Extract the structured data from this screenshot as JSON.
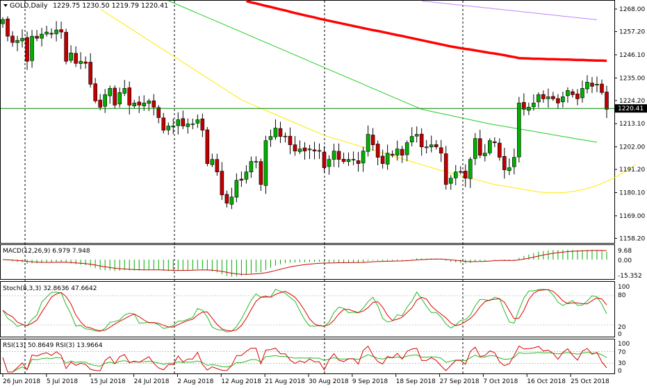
{
  "header": {
    "symbol_label": "GOLD,Daily",
    "ohlc_text": "1229.75 1230.50 1219.79 1220.41"
  },
  "current_price_label": "1220.41",
  "colors": {
    "up_candle": "#00b000",
    "down_candle": "#c00000",
    "ma_red": "#ff0000",
    "ma_purple": "#c080ff",
    "ma_green": "#22cc22",
    "ma_yellow": "#ffea00",
    "price_line": "#008000",
    "macd_hist": "#00aa00",
    "macd_signal": "#cc0000",
    "stoch_main": "#22bb22",
    "stoch_signal": "#dd0000",
    "rsi_fast": "#dd0000",
    "rsi_slow": "#22bb22"
  },
  "panels": {
    "macd": {
      "label": "MACD(12,26,9) 6.979 7.948",
      "ticks": [
        "9.68",
        "0.00",
        "-15.352"
      ]
    },
    "stoch": {
      "label": "Stoch(8,3,3) 32.8636 47.6642",
      "ticks": [
        "100",
        "80",
        "20",
        "0"
      ]
    },
    "rsi": {
      "label": "RSI(13) 50.8649 RSI(3) 13.9664",
      "ticks": [
        "100",
        "70",
        "30",
        "0"
      ]
    }
  },
  "chart_data": {
    "type": "candlestick",
    "title": "GOLD,Daily",
    "ylim": [
      1156,
      1272
    ],
    "y_ticks": [
      "1268.00",
      "1257.20",
      "1246.10",
      "1235.00",
      "1224.20",
      "1213.10",
      "1202.00",
      "1191.20",
      "1180.10",
      "1169.00",
      "1158.20"
    ],
    "x_ticks": [
      "26 Jun 2018",
      "5 Jul 2018",
      "15 Jul 2018",
      "24 Jul 2018",
      "2 Aug 2018",
      "12 Aug 2018",
      "21 Aug 2018",
      "30 Aug 2018",
      "9 Sep 2018",
      "18 Sep 2018",
      "27 Sep 2018",
      "7 Oct 2018",
      "16 Oct 2018",
      "25 Oct 2018"
    ],
    "closes": [
      1263,
      1255,
      1252,
      1253,
      1254,
      1243,
      1255,
      1254,
      1256,
      1257,
      1256,
      1258,
      1257,
      1243,
      1247,
      1242,
      1243,
      1242,
      1232,
      1224,
      1221,
      1227,
      1230,
      1222,
      1228,
      1230,
      1222,
      1223,
      1222,
      1223,
      1224,
      1221,
      1216,
      1210,
      1212,
      1212,
      1215,
      1212,
      1213,
      1213,
      1215,
      1210,
      1194,
      1196,
      1190,
      1179,
      1175,
      1178,
      1186,
      1186,
      1190,
      1195,
      1195,
      1184,
      1205,
      1207,
      1211,
      1207,
      1207,
      1203,
      1200,
      1201,
      1200,
      1201,
      1200,
      1200,
      1192,
      1196,
      1200,
      1196,
      1195,
      1196,
      1196,
      1194,
      1200,
      1208,
      1203,
      1197,
      1194,
      1199,
      1198,
      1201,
      1198,
      1204,
      1207,
      1208,
      1202,
      1202,
      1203,
      1202,
      1199,
      1184,
      1187,
      1190,
      1190,
      1187,
      1196,
      1206,
      1198,
      1199,
      1205,
      1204,
      1197,
      1191,
      1192,
      1197,
      1223,
      1220,
      1221,
      1223,
      1227,
      1225,
      1226,
      1225,
      1223,
      1226,
      1229,
      1227,
      1225,
      1230,
      1233,
      1231,
      1232,
      1228,
      1220
    ],
    "series": [
      {
        "name": "MA",
        "color": "#ff0000",
        "values": [
          null,
          null,
          null,
          null,
          null,
          null,
          null,
          null,
          null,
          null,
          null,
          null,
          null,
          null,
          null,
          null,
          null,
          null,
          null,
          null,
          null,
          null,
          null,
          null,
          null,
          null,
          null,
          null,
          null,
          null,
          null,
          null,
          null,
          null,
          null,
          null,
          null,
          null,
          null,
          null,
          null,
          null,
          null,
          null,
          null,
          null,
          null,
          null,
          null,
          null,
          1271.8,
          1271.2,
          1270.7,
          1270.1,
          1269.5,
          1269.0,
          1268.4,
          1267.8,
          1267.3,
          1266.7,
          1266.1,
          1265.6,
          1265.0,
          1264.5,
          1264.0,
          1263.4,
          1262.9,
          1262.4,
          1261.9,
          1261.4,
          1260.9,
          1260.4,
          1259.9,
          1259.4,
          1258.9,
          1258.4,
          1257.9,
          1257.5,
          1257.0,
          1256.5,
          1256.0,
          1255.5,
          1255.1,
          1254.6,
          1254.1,
          1253.6,
          1253.1,
          1252.6,
          1252.1,
          1251.6,
          1251.1,
          1250.6,
          1250.1,
          1249.7,
          1249.3,
          1248.9,
          1248.6,
          1248.2,
          1247.8,
          1247.4,
          1247.0,
          1246.7,
          1246.3,
          1245.9,
          1245.4,
          1245.0,
          1244.5,
          1244.4,
          1244.3,
          1244.2,
          1244.2,
          1244.1,
          1244.0,
          1244.0,
          1243.9,
          1243.8,
          1243.8,
          1243.7,
          1243.6,
          1243.6,
          1243.5,
          1243.4,
          1243.3,
          1243.3,
          1243.2
        ]
      },
      {
        "name": "MA",
        "color": "#c080ff",
        "values": [
          null,
          null,
          null,
          null,
          null,
          null,
          null,
          null,
          null,
          null,
          null,
          null,
          null,
          null,
          null,
          null,
          null,
          null,
          null,
          null,
          null,
          null,
          null,
          null,
          null,
          null,
          null,
          null,
          null,
          null,
          null,
          null,
          null,
          null,
          null,
          null,
          null,
          null,
          null,
          null,
          null,
          null,
          null,
          null,
          null,
          null,
          null,
          null,
          null,
          null,
          null,
          null,
          null,
          null,
          null,
          null,
          null,
          null,
          null,
          null,
          null,
          null,
          null,
          null,
          null,
          null,
          null,
          null,
          null,
          null,
          null,
          null,
          null,
          null,
          null,
          null,
          null,
          null,
          null,
          null,
          null,
          null,
          null,
          null,
          null,
          null,
          1271.9,
          1271.6,
          1271.4,
          1271.1,
          1270.9,
          1270.6,
          1270.4,
          1270.1,
          1269.9,
          1269.6,
          1269.4,
          1269.1,
          1268.9,
          1268.6,
          1268.4,
          1268.1,
          1267.9,
          1267.6,
          1267.4,
          1267.1,
          1266.9,
          1266.6,
          1266.4,
          1266.1,
          1265.9,
          1265.6,
          1265.4,
          1265.1,
          1264.9,
          1264.6,
          1264.4,
          1264.1,
          1263.9,
          1263.6,
          1263.4,
          1263.1,
          1262.9
        ]
      },
      {
        "name": "MA",
        "color": "#22cc22",
        "values": [
          null,
          null,
          null,
          null,
          null,
          null,
          null,
          null,
          null,
          null,
          null,
          null,
          null,
          null,
          null,
          null,
          null,
          null,
          null,
          null,
          null,
          null,
          null,
          null,
          null,
          null,
          null,
          null,
          null,
          null,
          null,
          null,
          null,
          null,
          1272.0,
          1271.0,
          1270.0,
          1269.0,
          1268.0,
          1267.0,
          1266.0,
          1265.0,
          1264.0,
          1263.0,
          1262.0,
          1261.0,
          1260.0,
          1259.0,
          1258.0,
          1257.0,
          1256.0,
          1255.0,
          1254.0,
          1253.0,
          1252.0,
          1251.0,
          1250.0,
          1249.0,
          1248.0,
          1247.0,
          1246.0,
          1245.0,
          1244.0,
          1243.0,
          1242.0,
          1241.0,
          1240.0,
          1239.0,
          1238.0,
          1237.0,
          1236.0,
          1235.0,
          1234.0,
          1233.0,
          1232.0,
          1231.0,
          1230.0,
          1229.0,
          1228.0,
          1227.0,
          1226.0,
          1225.0,
          1224.0,
          1223.0,
          1222.0,
          1221.0,
          1220.0,
          1219.5,
          1219.0,
          1218.5,
          1218.0,
          1217.5,
          1217.0,
          1216.5,
          1216.0,
          1215.5,
          1215.0,
          1214.5,
          1214.0,
          1213.5,
          1213.0,
          1212.6,
          1212.2,
          1211.8,
          1211.4,
          1211.0,
          1210.6,
          1210.2,
          1209.8,
          1209.4,
          1209.0,
          1208.6,
          1208.2,
          1207.8,
          1207.4,
          1207.0,
          1206.6,
          1206.2,
          1205.8,
          1205.4,
          1205.0,
          1204.6,
          1204.2
        ]
      },
      {
        "name": "MA",
        "color": "#ffea00",
        "values": [
          null,
          null,
          null,
          null,
          null,
          null,
          null,
          null,
          null,
          null,
          null,
          null,
          null,
          null,
          null,
          null,
          null,
          null,
          null,
          null,
          1268.0,
          1266.5,
          1265.0,
          1263.5,
          1262.0,
          1260.5,
          1259.0,
          1257.5,
          1256.0,
          1254.5,
          1253.0,
          1251.5,
          1250.0,
          1248.5,
          1247.0,
          1245.5,
          1244.0,
          1242.5,
          1241.0,
          1239.5,
          1238.0,
          1236.5,
          1235.0,
          1233.5,
          1232.0,
          1230.5,
          1229.0,
          1227.5,
          1226.0,
          1224.5,
          1223.5,
          1222.5,
          1221.5,
          1220.5,
          1219.5,
          1218.5,
          1217.5,
          1216.5,
          1215.5,
          1214.5,
          1213.5,
          1212.5,
          1211.5,
          1210.5,
          1209.5,
          1208.5,
          1207.5,
          1206.8,
          1206.1,
          1205.4,
          1204.7,
          1204.0,
          1203.3,
          1202.6,
          1201.9,
          1201.2,
          1200.5,
          1199.8,
          1199.1,
          1198.4,
          1197.7,
          1197.0,
          1196.3,
          1195.6,
          1194.9,
          1194.2,
          1193.5,
          1192.8,
          1192.1,
          1191.4,
          1190.7,
          1190.0,
          1189.4,
          1188.8,
          1188.2,
          1187.6,
          1187.0,
          1186.4,
          1185.8,
          1185.2,
          1184.6,
          1184.0,
          1183.6,
          1183.2,
          1182.8,
          1182.4,
          1182.0,
          1181.6,
          1181.2,
          1180.8,
          1180.4,
          1180.2,
          1180.1,
          1180.0,
          1180.0,
          1180.1,
          1180.3,
          1180.6,
          1181.0,
          1181.5,
          1182.1,
          1182.8,
          1183.6,
          1184.5,
          1185.5,
          1186.6,
          1187.8,
          1189.1,
          1190.5,
          1192.0,
          1193.6
        ]
      }
    ]
  }
}
